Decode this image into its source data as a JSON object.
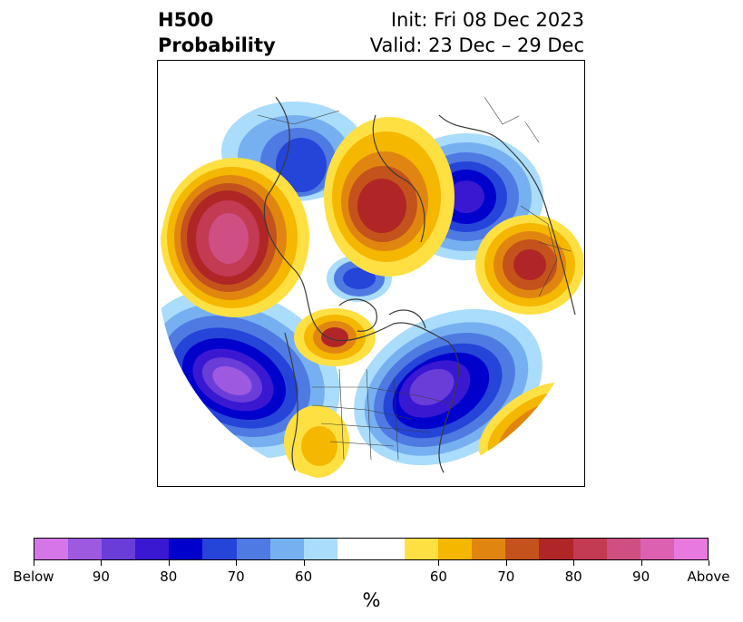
{
  "header": {
    "title_line1": "H500",
    "title_line2": "Probability",
    "init_text": "Init: Fri 08 Dec 2023",
    "valid_text": "Valid: 23 Dec – 29 Dec"
  },
  "colorbar": {
    "colors": [
      "#d675e8",
      "#9d5ae0",
      "#6a3dd9",
      "#3a18d2",
      "#0000cc",
      "#2544d8",
      "#4f7ae2",
      "#76b0f0",
      "#aadcfb",
      "#ffffff",
      "#ffffff",
      "#ffe043",
      "#f5b700",
      "#e08610",
      "#c4521c",
      "#b02626",
      "#c33a53",
      "#cf4f82",
      "#dc61b1",
      "#e879de"
    ],
    "tick_labels": [
      "Below",
      "90",
      "80",
      "70",
      "60",
      "60",
      "70",
      "80",
      "90",
      "Above"
    ],
    "unit": "%"
  },
  "map": {
    "projection": "north-polar-stereographic",
    "features": [
      "coastlines",
      "country-borders",
      "state-province-borders"
    ],
    "anomalies": [
      {
        "name": "below-center-north-pacific-east",
        "sign": "below",
        "peak": "Below"
      },
      {
        "name": "below-center-north-america-east",
        "sign": "below",
        "peak": ">90"
      },
      {
        "name": "below-center-scandinavia",
        "sign": "below",
        "peak": "80"
      },
      {
        "name": "below-center-siberia-west",
        "sign": "below",
        "peak": "80"
      },
      {
        "name": "above-center-asia-east",
        "sign": "above",
        "peak": ">90"
      },
      {
        "name": "above-center-europe",
        "sign": "above",
        "peak": "80"
      },
      {
        "name": "above-center-russia-arctic",
        "sign": "above",
        "peak": "80"
      },
      {
        "name": "above-center-western-canada",
        "sign": "above",
        "peak": "80"
      },
      {
        "name": "above-center-atlantic",
        "sign": "above",
        "peak": "80"
      }
    ]
  }
}
